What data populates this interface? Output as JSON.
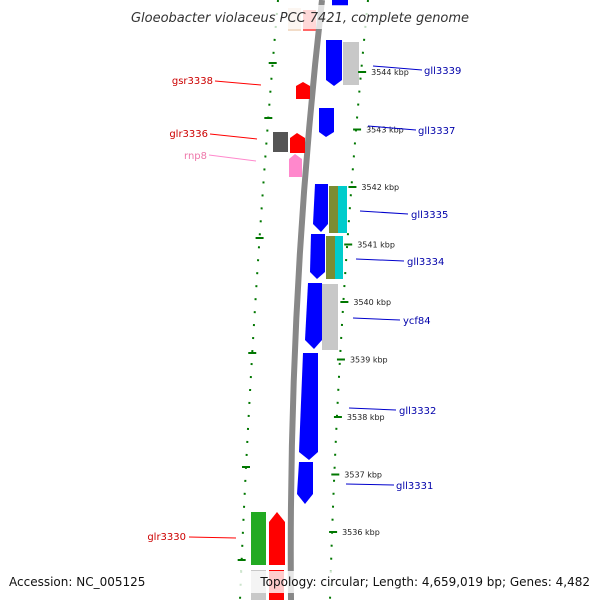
{
  "title": "Gloeobacter violaceus PCC 7421, complete genome",
  "footer": {
    "accession": "Accession: NC_005125",
    "topology": "Topology: circular; Length: 4,659,019 bp; Genes: 4,482"
  },
  "colors": {
    "forward_gene": "#ff0000",
    "reverse_gene": "#0000ff",
    "rna_gene": "#ff88cc",
    "backbone": "#888888",
    "tick_marks": "#007700"
  },
  "scale_ticks": [
    {
      "label": "3544 kbp",
      "kbp": 3544
    },
    {
      "label": "3543 kbp",
      "kbp": 3543
    },
    {
      "label": "3542 kbp",
      "kbp": 3542
    },
    {
      "label": "3541 kbp",
      "kbp": 3541
    },
    {
      "label": "3540 kbp",
      "kbp": 3540
    },
    {
      "label": "3539 kbp",
      "kbp": 3539
    },
    {
      "label": "3538 kbp",
      "kbp": 3538
    },
    {
      "label": "3537 kbp",
      "kbp": 3537
    },
    {
      "label": "3536 kbp",
      "kbp": 3536
    }
  ],
  "left_labels": [
    {
      "name": "gsr3338",
      "kind": "forward"
    },
    {
      "name": "glr3336",
      "kind": "forward"
    },
    {
      "name": "rnp8",
      "kind": "rna"
    },
    {
      "name": "glr3330",
      "kind": "forward"
    }
  ],
  "right_labels": [
    {
      "name": "gll3339",
      "kind": "reverse"
    },
    {
      "name": "gll3337",
      "kind": "reverse"
    },
    {
      "name": "gll3335",
      "kind": "reverse"
    },
    {
      "name": "gll3334",
      "kind": "reverse"
    },
    {
      "name": "ycf84",
      "kind": "reverse"
    },
    {
      "name": "gll3332",
      "kind": "reverse"
    },
    {
      "name": "gll3331",
      "kind": "reverse"
    }
  ]
}
